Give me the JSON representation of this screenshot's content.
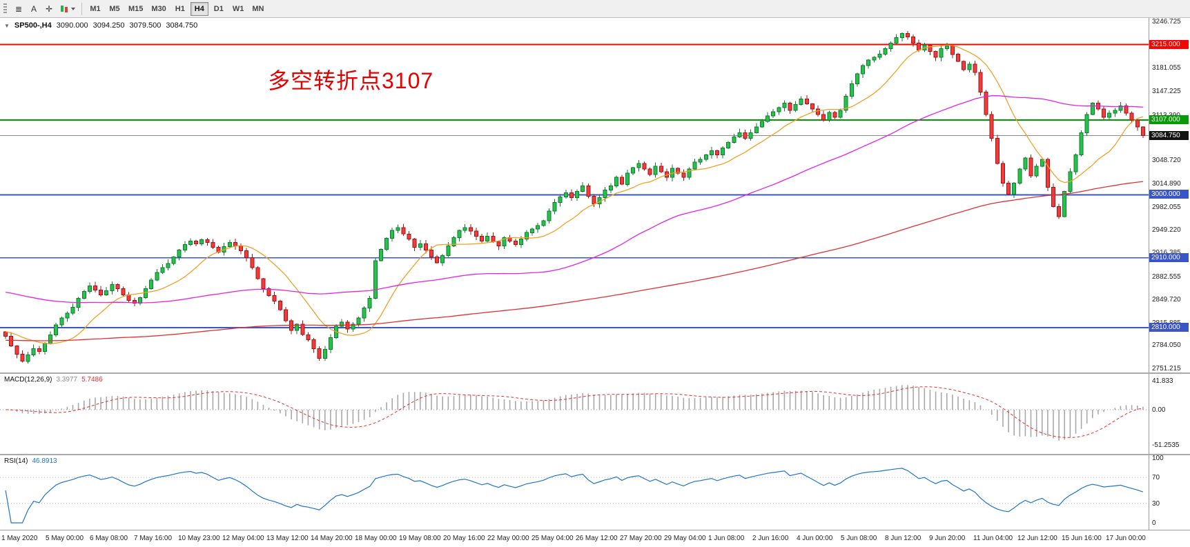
{
  "toolbar": {
    "tool_buttons": [
      {
        "name": "chart-list",
        "glyph": "≣"
      },
      {
        "name": "cursor-a",
        "glyph": "A"
      },
      {
        "name": "crosshair",
        "glyph": "✛"
      }
    ],
    "timeframes": [
      "M1",
      "M5",
      "M15",
      "M30",
      "H1",
      "H4",
      "D1",
      "W1",
      "MN"
    ],
    "active_timeframe": "H4"
  },
  "chart": {
    "collapse_arrow": "▼",
    "symbol": "SP500-,H4",
    "ohlc": {
      "open": "3090.000",
      "high": "3094.250",
      "low": "3079.500",
      "close": "3084.750"
    },
    "annotation": {
      "text": "多空转折点3107",
      "color": "#e60000"
    },
    "price_range": {
      "top": 3253,
      "bottom": 2746
    },
    "levels": [
      {
        "price": 3215.0,
        "label": "3215.000",
        "line_color": "#ff0000",
        "badge_color": "#ff0000",
        "line_width": 1.6
      },
      {
        "price": 3107.0,
        "label": "3107.000",
        "line_color": "#009a00",
        "badge_color": "#089a08",
        "line_width": 2
      },
      {
        "price": 3000.0,
        "label": "3000.000",
        "line_color": "#3a55c8",
        "badge_color": "#3a55c8",
        "line_width": 1.8
      },
      {
        "price": 2910.0,
        "label": "2910.000",
        "line_color": "#3a55c8",
        "badge_color": "#3a55c8",
        "line_width": 1.8
      },
      {
        "price": 2810.0,
        "label": "2810.000",
        "line_color": "#3a55c8",
        "badge_color": "#3a55c8",
        "line_width": 1.8
      }
    ],
    "current_price": {
      "value": 3084.75,
      "label": "3084.750",
      "line_color": "#8a8a8a",
      "badge_color": "#141414"
    }
  },
  "chart_data": {
    "type": "candlestick",
    "symbol": "SP500-",
    "timeframe": "H4",
    "y_ticks": [
      "3246.725",
      "3181.055",
      "3147.225",
      "3113.390",
      "3048.720",
      "3014.890",
      "2982.055",
      "2949.220",
      "2916.385",
      "2882.555",
      "2849.720",
      "2815.885",
      "2784.050",
      "2751.215"
    ],
    "x_labels": [
      "1 May 2020",
      "5 May 00:00",
      "6 May 08:00",
      "7 May 16:00",
      "10 May 23:00",
      "12 May 04:00",
      "13 May 12:00",
      "14 May 20:00",
      "18 May 00:00",
      "19 May 08:00",
      "20 May 16:00",
      "22 May 00:00",
      "25 May 04:00",
      "26 May 12:00",
      "27 May 20:00",
      "29 May 04:00",
      "1 Jun 08:00",
      "2 Jun 16:00",
      "4 Jun 00:00",
      "5 Jun 08:00",
      "8 Jun 12:00",
      "9 Jun 20:00",
      "11 Jun 04:00",
      "12 Jun 12:00",
      "15 Jun 16:00",
      "17 Jun 00:00"
    ],
    "closes": [
      2798,
      2784,
      2772,
      2762,
      2771,
      2780,
      2776,
      2788,
      2800,
      2814,
      2824,
      2831,
      2839,
      2852,
      2862,
      2870,
      2864,
      2857,
      2863,
      2872,
      2866,
      2857,
      2849,
      2845,
      2853,
      2866,
      2878,
      2889,
      2896,
      2902,
      2911,
      2921,
      2929,
      2934,
      2930,
      2936,
      2932,
      2925,
      2918,
      2926,
      2932,
      2927,
      2920,
      2910,
      2896,
      2880,
      2866,
      2856,
      2848,
      2836,
      2820,
      2806,
      2815,
      2800,
      2793,
      2780,
      2766,
      2779,
      2796,
      2812,
      2818,
      2808,
      2815,
      2824,
      2838,
      2852,
      2906,
      2922,
      2938,
      2949,
      2953,
      2944,
      2937,
      2925,
      2930,
      2921,
      2911,
      2903,
      2913,
      2927,
      2939,
      2949,
      2953,
      2948,
      2941,
      2934,
      2941,
      2933,
      2927,
      2939,
      2934,
      2929,
      2937,
      2946,
      2951,
      2956,
      2963,
      2977,
      2989,
      2997,
      3003,
      2996,
      3005,
      3013,
      2998,
      2987,
      2996,
      3007,
      3013,
      3025,
      3015,
      3031,
      3039,
      3045,
      3037,
      3029,
      3041,
      3033,
      3025,
      3038,
      3031,
      3025,
      3037,
      3047,
      3051,
      3057,
      3063,
      3057,
      3067,
      3075,
      3083,
      3089,
      3081,
      3089,
      3097,
      3105,
      3113,
      3119,
      3125,
      3131,
      3121,
      3129,
      3137,
      3130,
      3123,
      3115,
      3107,
      3118,
      3111,
      3121,
      3141,
      3159,
      3173,
      3185,
      3193,
      3197,
      3201,
      3209,
      3217,
      3225,
      3231,
      3226,
      3217,
      3207,
      3214,
      3205,
      3197,
      3209,
      3213,
      3201,
      3191,
      3179,
      3187,
      3175,
      3147,
      3115,
      3081,
      3045,
      3017,
      3001,
      3017,
      3037,
      3053,
      3027,
      3041,
      3051,
      3011,
      2983,
      2969,
      3005,
      3033,
      3057,
      3089,
      3115,
      3131,
      3123,
      3111,
      3117,
      3121,
      3127,
      3117,
      3107,
      3097,
      3084.75
    ],
    "colors": {
      "up": "#27c24c",
      "up_stroke": "#0f7c2f",
      "down": "#f23b3b",
      "down_stroke": "#a31515"
    },
    "ma": [
      {
        "name": "ma-fast",
        "window": 12,
        "seed": 2805,
        "color": "#efa126"
      },
      {
        "name": "ma-mid",
        "window": 55,
        "seed": 2862,
        "color": "#e422e4"
      },
      {
        "name": "ma-slow",
        "window": 170,
        "seed": 2792,
        "color": "#e03030"
      }
    ]
  },
  "macd": {
    "label": "MACD(12,26,9)",
    "value_main": "3.3977",
    "value_signal": "5.7486",
    "axis": [
      {
        "label": "41.833",
        "value": 41.833
      },
      {
        "label": "0.00",
        "value": 0
      },
      {
        "label": "-51.2535",
        "value": -51.2535
      }
    ],
    "scale": {
      "max": 52,
      "min": -64
    },
    "colors": {
      "histogram": "#a8a8a8",
      "signal": "#e03030",
      "value_main": "#8c8c8c",
      "value_signal": "#e03030"
    }
  },
  "rsi": {
    "label": "RSI(14)",
    "value": "46.8913",
    "axis": [
      {
        "label": "100",
        "value": 100
      },
      {
        "label": "70",
        "value": 70
      },
      {
        "label": "30",
        "value": 30
      },
      {
        "label": "0",
        "value": 0
      }
    ],
    "levels": [
      70,
      30
    ],
    "color": "#1e74c8",
    "value_color": "#1e74c8"
  }
}
